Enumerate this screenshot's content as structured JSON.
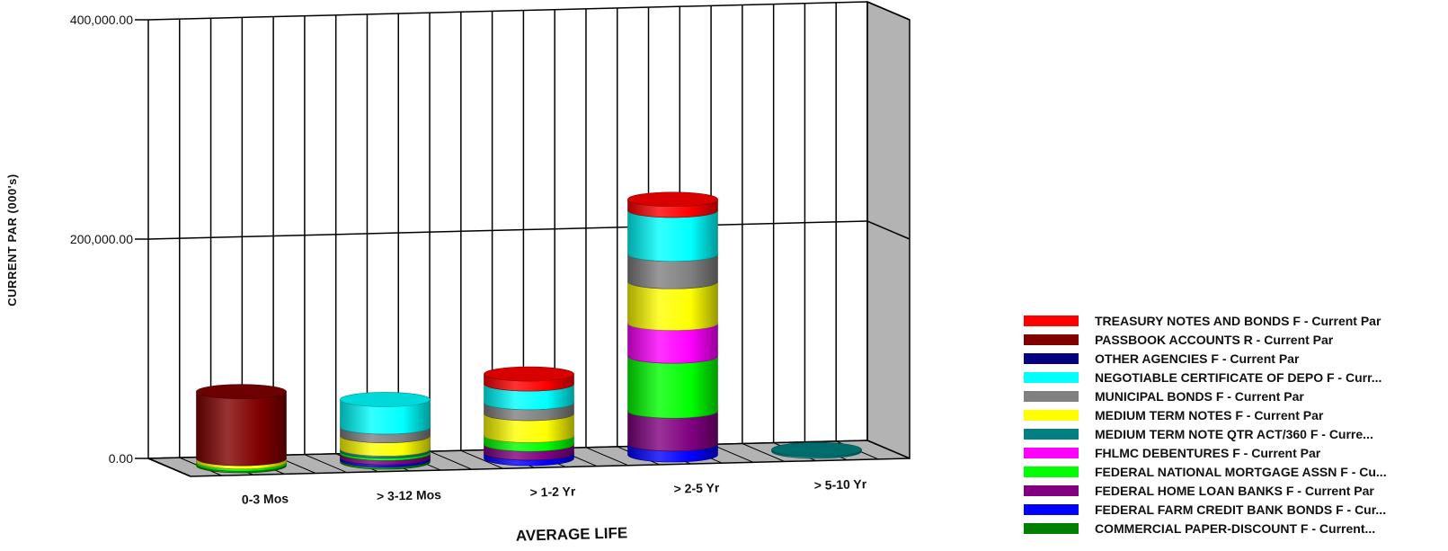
{
  "chart_data": {
    "type": "bar",
    "subtype": "3d-stacked-cylinder",
    "title": "",
    "xlabel": "AVERAGE LIFE",
    "ylabel": "CURRENT PAR (000's)",
    "ylim": [
      0,
      400000
    ],
    "y_ticks": [
      "0.00",
      "200,000.00",
      "400,000.00"
    ],
    "grid": true,
    "legend_position": "bottom-right",
    "categories": [
      "0-3 Mos",
      "> 3-12 Mos",
      "> 1-2 Yr",
      "> 2-5 Yr",
      "> 5-10 Yr"
    ],
    "series": [
      {
        "name": "COMMERCIAL PAPER-DISCOUNT F - Current...",
        "color": "#008000",
        "values": [
          1500,
          2000,
          0,
          0,
          0
        ]
      },
      {
        "name": "FEDERAL FARM CREDIT BANK BONDS F - Cur...",
        "color": "#0000ff",
        "values": [
          0,
          2000,
          5000,
          10000,
          0
        ]
      },
      {
        "name": "FEDERAL HOME LOAN BANKS F - Current Par",
        "color": "#800080",
        "values": [
          0,
          4000,
          8000,
          30000,
          0
        ]
      },
      {
        "name": "FEDERAL NATIONAL MORTGAGE ASSN F - Cu...",
        "color": "#00ff00",
        "values": [
          2000,
          2000,
          8000,
          50000,
          0
        ]
      },
      {
        "name": "FHLMC DEBENTURES F - Current Par",
        "color": "#ff00ff",
        "values": [
          0,
          0,
          0,
          30000,
          0
        ]
      },
      {
        "name": "MEDIUM TERM NOTE QTR ACT/360 F - Curre...",
        "color": "#008080",
        "values": [
          0,
          2000,
          0,
          0,
          1500
        ]
      },
      {
        "name": "MEDIUM TERM NOTES F - Current Par",
        "color": "#ffff00",
        "values": [
          3000,
          12000,
          20000,
          38000,
          0
        ]
      },
      {
        "name": "MUNICIPAL BONDS F - Current Par",
        "color": "#808080",
        "values": [
          0,
          8000,
          10000,
          25000,
          0
        ]
      },
      {
        "name": "NEGOTIABLE CERTIFICATE OF DEPO F - Curr...",
        "color": "#00ffff",
        "values": [
          0,
          25000,
          17000,
          40000,
          0
        ]
      },
      {
        "name": "OTHER AGENCIES F - Current Par",
        "color": "#000080",
        "values": [
          0,
          0,
          0,
          0,
          0
        ]
      },
      {
        "name": "PASSBOOK ACCOUNTS R - Current Par",
        "color": "#800000",
        "values": [
          61000,
          0,
          0,
          0,
          0
        ]
      },
      {
        "name": "TREASURY NOTES AND BONDS F - Current Par",
        "color": "#ff0000",
        "values": [
          0,
          0,
          9000,
          10000,
          0
        ]
      }
    ]
  }
}
